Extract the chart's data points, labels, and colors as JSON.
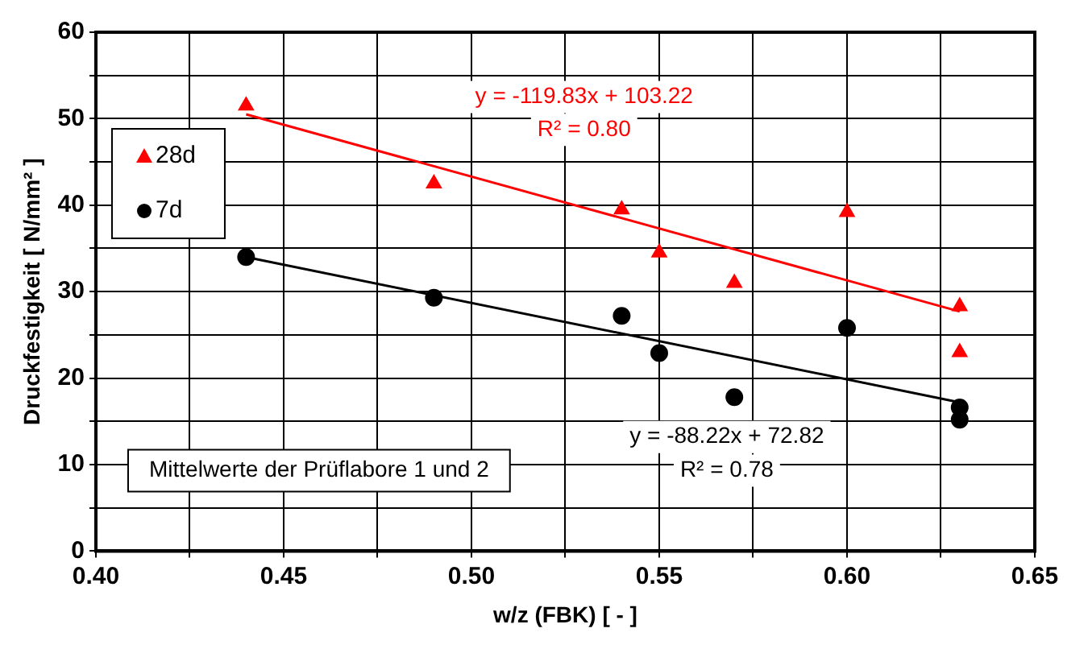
{
  "chart_data": {
    "type": "scatter",
    "xlabel": "w/z (FBK) [ - ]",
    "ylabel": "Druckfestigkeit [ N/mm² ]",
    "xlim": [
      0.4,
      0.65
    ],
    "ylim": [
      0,
      60
    ],
    "xticks": [
      {
        "value": 0.4,
        "label": "0.40"
      },
      {
        "value": 0.425,
        "label": null
      },
      0.45,
      {
        "value": 0.475,
        "label": null
      },
      {
        "value": 0.5,
        "label": "0.50"
      },
      {
        "value": 0.525,
        "label": null
      },
      0.55,
      {
        "value": 0.575,
        "label": null
      },
      {
        "value": 0.6,
        "label": "0.60"
      },
      {
        "value": 0.625,
        "label": null
      },
      0.65
    ],
    "yticks": [
      0,
      {
        "value": 5,
        "label": null
      },
      10,
      {
        "value": 15,
        "label": null
      },
      20,
      {
        "value": 25,
        "label": null
      },
      30,
      {
        "value": 35,
        "label": null
      },
      40,
      {
        "value": 45,
        "label": null
      },
      50,
      {
        "value": 55,
        "label": null
      },
      60
    ],
    "grid": true,
    "legend": "top left",
    "series": [
      {
        "name": "28d",
        "color": "#ff0000",
        "marker": "triangle",
        "x": [
          0.44,
          0.49,
          0.54,
          0.55,
          0.57,
          0.6,
          0.63,
          0.63
        ],
        "values": [
          51.5,
          42.5,
          39.5,
          34.5,
          31,
          39.2,
          28.3,
          23
        ]
      },
      {
        "name": "7d",
        "color": "#000000",
        "marker": "circle",
        "x": [
          0.44,
          0.49,
          0.54,
          0.55,
          0.57,
          0.6,
          0.63,
          0.63
        ],
        "values": [
          34,
          29.3,
          27.2,
          22.9,
          17.8,
          25.8,
          16.6,
          15.2
        ]
      },
      {
        "type": "line",
        "color": "#ff0000",
        "marker": "none",
        "x": [
          0.44,
          0.63
        ],
        "values": [
          50.5,
          27.7
        ]
      },
      {
        "type": "line",
        "color": "#000000",
        "marker": "none",
        "x": [
          0.44,
          0.63
        ],
        "values": [
          34.0,
          17.2
        ]
      }
    ],
    "annotations": [
      "y = -119.83x + 103.22",
      "R² = 0.80",
      "y = -88.22x + 72.82",
      "R² = 0.78",
      "Mittelwerte der Prüflabore 1 und 2"
    ]
  }
}
